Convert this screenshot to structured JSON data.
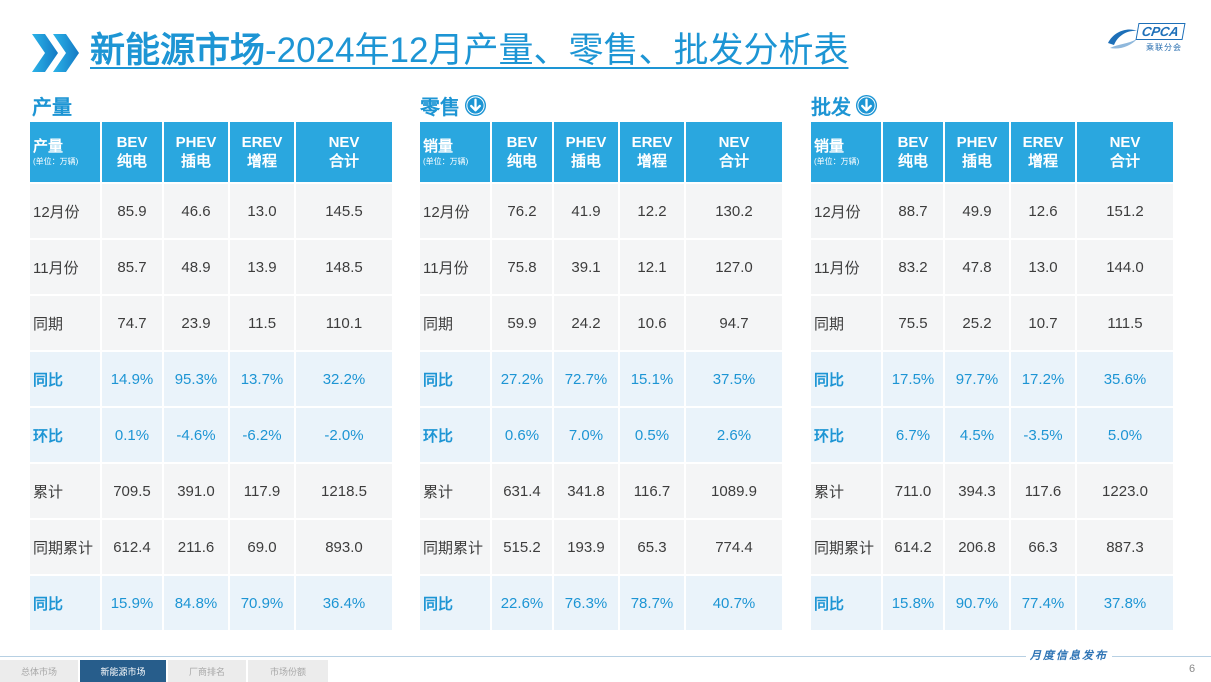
{
  "slide": {
    "title_icon": "double-chevron-right-icon",
    "title_bold": "新能源市场",
    "title_rest": "-2024年12月产量、零售、批发分析表",
    "footer_tagline": "月度信息发布",
    "page_number": "6"
  },
  "logo": {
    "icon": "cpca-swoosh-icon",
    "wordmark": "CPCA",
    "subtext": "乘联分会"
  },
  "colors": {
    "accent": "#1d95d4",
    "header_bg": "#2aa7df",
    "nav_active": "#275d8b"
  },
  "tables": [
    {
      "section_title": "产量",
      "header": {
        "first_label": "产量",
        "unit": "(单位：万辆)",
        "columns": [
          {
            "code": "BEV",
            "name": "纯电"
          },
          {
            "code": "PHEV",
            "name": "插电"
          },
          {
            "code": "EREV",
            "name": "增程"
          },
          {
            "code": "NEV",
            "name": "合计"
          }
        ]
      },
      "rows": [
        {
          "label": "12月份",
          "values": [
            "85.9",
            "46.6",
            "13.0",
            "145.5"
          ]
        },
        {
          "label": "11月份",
          "values": [
            "85.7",
            "48.9",
            "13.9",
            "148.5"
          ]
        },
        {
          "label": "同期",
          "values": [
            "74.7",
            "23.9",
            "11.5",
            "110.1"
          ]
        },
        {
          "label": "同比",
          "values": [
            "14.9%",
            "95.3%",
            "13.7%",
            "32.2%"
          ]
        },
        {
          "label": "环比",
          "values": [
            "0.1%",
            "-4.6%",
            "-6.2%",
            "-2.0%"
          ]
        },
        {
          "label": "累计",
          "values": [
            "709.5",
            "391.0",
            "117.9",
            "1218.5"
          ]
        },
        {
          "label": "同期累计",
          "values": [
            "612.4",
            "211.6",
            "69.0",
            "893.0"
          ]
        },
        {
          "label": "同比",
          "values": [
            "15.9%",
            "84.8%",
            "70.9%",
            "36.4%"
          ]
        }
      ]
    },
    {
      "section_title": "零售",
      "section_icon": "arrow-down-circle-icon",
      "header": {
        "first_label": "销量",
        "unit": "(单位：万辆)",
        "columns": [
          {
            "code": "BEV",
            "name": "纯电"
          },
          {
            "code": "PHEV",
            "name": "插电"
          },
          {
            "code": "EREV",
            "name": "增程"
          },
          {
            "code": "NEV",
            "name": "合计"
          }
        ]
      },
      "rows": [
        {
          "label": "12月份",
          "values": [
            "76.2",
            "41.9",
            "12.2",
            "130.2"
          ]
        },
        {
          "label": "11月份",
          "values": [
            "75.8",
            "39.1",
            "12.1",
            "127.0"
          ]
        },
        {
          "label": "同期",
          "values": [
            "59.9",
            "24.2",
            "10.6",
            "94.7"
          ]
        },
        {
          "label": "同比",
          "values": [
            "27.2%",
            "72.7%",
            "15.1%",
            "37.5%"
          ]
        },
        {
          "label": "环比",
          "values": [
            "0.6%",
            "7.0%",
            "0.5%",
            "2.6%"
          ]
        },
        {
          "label": "累计",
          "values": [
            "631.4",
            "341.8",
            "116.7",
            "1089.9"
          ]
        },
        {
          "label": "同期累计",
          "values": [
            "515.2",
            "193.9",
            "65.3",
            "774.4"
          ]
        },
        {
          "label": "同比",
          "values": [
            "22.6%",
            "76.3%",
            "78.7%",
            "40.7%"
          ]
        }
      ]
    },
    {
      "section_title": "批发",
      "section_icon": "arrow-down-circle-icon",
      "header": {
        "first_label": "销量",
        "unit": "(单位：万辆)",
        "columns": [
          {
            "code": "BEV",
            "name": "纯电"
          },
          {
            "code": "PHEV",
            "name": "插电"
          },
          {
            "code": "EREV",
            "name": "增程"
          },
          {
            "code": "NEV",
            "name": "合计"
          }
        ]
      },
      "rows": [
        {
          "label": "12月份",
          "values": [
            "88.7",
            "49.9",
            "12.6",
            "151.2"
          ]
        },
        {
          "label": "11月份",
          "values": [
            "83.2",
            "47.8",
            "13.0",
            "144.0"
          ]
        },
        {
          "label": "同期",
          "values": [
            "75.5",
            "25.2",
            "10.7",
            "111.5"
          ]
        },
        {
          "label": "同比",
          "values": [
            "17.5%",
            "97.7%",
            "17.2%",
            "35.6%"
          ]
        },
        {
          "label": "环比",
          "values": [
            "6.7%",
            "4.5%",
            "-3.5%",
            "5.0%"
          ]
        },
        {
          "label": "累计",
          "values": [
            "711.0",
            "394.3",
            "117.6",
            "1223.0"
          ]
        },
        {
          "label": "同期累计",
          "values": [
            "614.2",
            "206.8",
            "66.3",
            "887.3"
          ]
        },
        {
          "label": "同比",
          "values": [
            "15.8%",
            "90.7%",
            "77.4%",
            "37.8%"
          ]
        }
      ]
    }
  ],
  "nav": {
    "tabs": [
      {
        "label": "总体市场",
        "active": false
      },
      {
        "label": "新能源市场",
        "active": true
      },
      {
        "label": "厂商排名",
        "active": false
      },
      {
        "label": "市场份额",
        "active": false
      }
    ]
  }
}
